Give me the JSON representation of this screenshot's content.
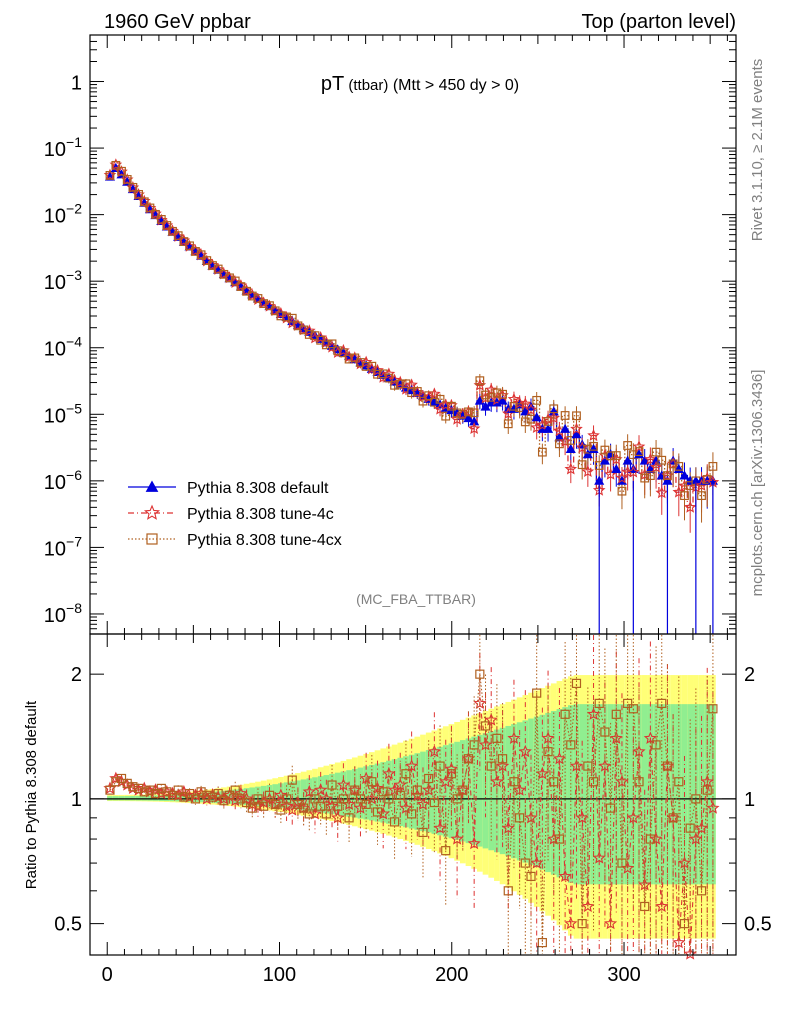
{
  "header": {
    "left": "1960 GeV ppbar",
    "right": "Top (parton level)"
  },
  "side": {
    "rivet": "Rivet 3.1.10, ≥ 2.1M events",
    "mcplots": "mcplots.cern.ch [arXiv:1306.3436]"
  },
  "chart_data": [
    {
      "type": "line",
      "title_main": "pT",
      "title_sub": " (ttbar)",
      "title_rest": " (Mtt > 450 dy > 0)",
      "watermark": "(MC_FBA_TTBAR)",
      "xlim": [
        -10,
        365
      ],
      "ylim": [
        5e-09,
        5
      ],
      "yscale": "log",
      "ytick_labels": {
        "t1": {
          "base": "1",
          "exp": ""
        },
        "t2": {
          "base": "10",
          "exp": "−1"
        },
        "t3": {
          "base": "10",
          "exp": "−2"
        },
        "t4": {
          "base": "10",
          "exp": "−3"
        },
        "t5": {
          "base": "10",
          "exp": "−4"
        },
        "t6": {
          "base": "10",
          "exp": "−5"
        },
        "t7": {
          "base": "10",
          "exp": "−6"
        },
        "t8": {
          "base": "10",
          "exp": "−7"
        },
        "t9": {
          "base": "10",
          "exp": "−8"
        }
      },
      "ytick_values": [
        1,
        0.1,
        0.01,
        0.001,
        0.0001,
        1e-05,
        1e-06,
        1e-07,
        1e-08
      ],
      "legend": {
        "position": "lower-left",
        "entries": [
          "Pythia 8.308 default",
          "Pythia 8.308 tune-4c",
          "Pythia 8.308 tune-4cx"
        ]
      },
      "bin_width": 3.3,
      "series": [
        {
          "name": "Pythia 8.308 default",
          "color": "#0000dd",
          "marker": "triangle",
          "x": [
            1.6,
            5.0,
            8.3,
            11.6,
            14.9,
            18.2,
            21.5,
            24.8,
            28.0,
            31.4,
            34.6,
            37.9,
            41.2,
            44.5,
            47.8,
            51.2,
            54.5,
            57.8,
            61.1,
            64.4,
            67.7,
            71.0,
            74.3,
            77.6,
            80.9,
            84.2,
            87.5,
            90.8,
            94.2,
            97.5,
            100.8,
            104.1,
            107.4,
            110.7,
            114.0,
            117.3,
            120.6,
            123.9,
            127.2,
            130.5,
            133.8,
            137.1,
            140.4,
            143.7,
            147.0,
            150.3,
            153.6,
            156.9,
            160.2,
            163.5,
            166.8,
            170.1,
            173.4,
            176.7,
            180.0,
            183.3,
            186.6,
            189.9,
            193.2,
            196.5,
            199.8,
            203.1,
            206.4,
            209.7,
            213.0,
            216.3,
            219.6,
            222.9,
            226.2,
            229.5,
            232.8,
            236.1,
            239.4,
            242.7,
            246.0,
            249.3,
            252.6,
            255.9,
            259.2,
            262.5,
            265.8,
            269.1,
            272.4,
            275.7,
            279.0,
            282.3,
            285.6,
            288.9,
            292.2,
            295.5,
            298.8,
            302.1,
            305.4,
            308.7,
            312.0,
            315.3,
            318.6,
            321.9,
            325.2,
            328.5,
            331.8,
            335.1,
            338.4,
            341.7,
            345.0,
            348.3,
            351.6
          ],
          "y": [
            0.037,
            0.05,
            0.04,
            0.031,
            0.024,
            0.019,
            0.015,
            0.012,
            0.0098,
            0.008,
            0.0066,
            0.0055,
            0.0046,
            0.0039,
            0.0033,
            0.0028,
            0.0024,
            0.002,
            0.0017,
            0.00148,
            0.00128,
            0.0011,
            0.00096,
            0.00083,
            0.00072,
            0.00063,
            0.00055,
            0.00048,
            0.00042,
            0.00037,
            0.00032,
            0.00029,
            0.00025,
            0.00022,
            0.000195,
            0.000172,
            0.000152,
            0.000135,
            0.00012,
            0.000106,
            9.4e-05,
            8.4e-05,
            7.5e-05,
            6.7e-05,
            6e-05,
            5.4e-05,
            4.8e-05,
            4.3e-05,
            3.9e-05,
            3.5e-05,
            3.1e-05,
            2.8e-05,
            2.5e-05,
            2.3e-05,
            2.1e-05,
            1.9e-05,
            1.7e-05,
            1.55e-05,
            1.4e-05,
            1.25e-05,
            1.15e-05,
            1.05e-05,
            9.5e-06,
            8.7e-06,
            7.8e-06,
            1.6e-05,
            1.3e-05,
            1.5e-05,
            1.5e-05,
            1.6e-05,
            1.2e-05,
            1.2e-05,
            1.4e-05,
            1.1e-05,
            1.3e-05,
            9e-06,
            6e-06,
            6e-06,
            1.1e-05,
            4.5e-06,
            6e-06,
            3e-06,
            5e-06,
            3.5e-06,
            2.5e-06,
            3e-06,
            1e-06,
            2e-06,
            2.5e-06,
            1.5e-06,
            1e-06,
            2e-06,
            1.5e-06,
            2.5e-06,
            2e-06,
            1.5e-06,
            2e-06,
            1.2e-06,
            1e-06,
            2e-06,
            1.5e-06,
            1.2e-06,
            1e-06,
            1e-06,
            1e-06,
            1e-06,
            1e-06
          ]
        },
        {
          "name": "Pythia 8.308 tune-4c",
          "color": "#dd3333",
          "marker": "star",
          "ratio": [
            1.06,
            1.12,
            1.1,
            1.08,
            1.06,
            1.05,
            1.06,
            1.04,
            1.05,
            1.03,
            1.04,
            1.03,
            1.02,
            1.04,
            1.01,
            1.02,
            1.03,
            1.0,
            1.02,
            1.01,
            1.0,
            1.02,
            0.99,
            1.03,
            1.0,
            0.97,
            0.96,
            0.98,
            1.0,
            0.97,
            1.02,
            0.96,
            0.94,
            0.98,
            0.95,
            1.04,
            0.92,
            1.05,
            1.0,
            0.96,
            0.9,
            1.08,
            0.97,
            1.05,
            0.95,
            1.12,
            1.0,
            1.06,
            0.92,
            1.15,
            1.05,
            1.08,
            0.95,
            1.2,
            1.02,
            0.97,
            1.05,
            1.3,
            0.85,
            1.1,
            1.18,
            0.8,
            1.05,
            1.25,
            0.78,
            1.7,
            1.35,
            1.55,
            1.1,
            1.2,
            0.85,
            1.4,
            1.05,
            1.3,
            0.9,
            0.7,
            1.15,
            1.4,
            0.8,
            1.25,
            0.65,
            0.5,
            1.2,
            0.9,
            0.55,
            1.6,
            0.72,
            1.2,
            0.5,
            1.4,
            1.1,
            0.68,
            0.9,
            1.3,
            0.62,
            1.4,
            0.8,
            0.55,
            1.2,
            0.9,
            0.45,
            0.7,
            0.4,
            0.8,
            0.85,
            1.1,
            0.95
          ]
        },
        {
          "name": "Pythia 8.308 tune-4cx",
          "color": "#b06020",
          "marker": "square",
          "ratio": [
            1.05,
            1.1,
            1.12,
            1.09,
            1.07,
            1.06,
            1.04,
            1.05,
            1.03,
            1.06,
            1.04,
            1.02,
            1.05,
            1.01,
            1.03,
            1.0,
            1.04,
            1.02,
            1.01,
            1.03,
            0.99,
            1.02,
            1.05,
            1.0,
            0.98,
            0.95,
            1.0,
            0.96,
            1.02,
            0.97,
            0.94,
            1.0,
            1.11,
            0.97,
            0.95,
            0.92,
            1.0,
            0.96,
            0.92,
            1.08,
            0.96,
            1.0,
            0.9,
            1.05,
            1.0,
            0.97,
            1.1,
            0.93,
            1.04,
            1.0,
            0.88,
            1.02,
            1.15,
            0.92,
            1.05,
            0.83,
            1.12,
            0.98,
            1.2,
            0.75,
            1.15,
            1.0,
            1.05,
            1.25,
            1.35,
            2.0,
            1.5,
            1.2,
            1.4,
            1.25,
            0.6,
            1.1,
            0.9,
            0.7,
            0.65,
            1.8,
            0.45,
            1.3,
            1.1,
            0.8,
            1.6,
            1.35,
            1.9,
            0.5,
            1.2,
            1.1,
            1.7,
            1.45,
            0.95,
            1.6,
            0.7,
            1.7,
            1.65,
            1.1,
            0.55,
            0.8,
            1.35,
            1.7,
            1.2,
            0.9,
            1.1,
            0.5,
            0.85,
            1.0,
            0.6,
            1.05,
            1.65
          ]
        }
      ]
    },
    {
      "type": "line",
      "ylabel": "Ratio to Pythia 8.308 default",
      "xlim": [
        -10,
        365
      ],
      "ylim": [
        0.42,
        2.5
      ],
      "yscale": "log",
      "yticks": [
        0.5,
        1,
        2
      ],
      "xticks": [
        0,
        100,
        200,
        300
      ],
      "bands": "yellow (tune-4c) and green (tune-4cx) uncertainty bands around 1",
      "band_colors": {
        "tune4c": "#ffff77",
        "tune4cx": "#90ee90"
      }
    }
  ]
}
